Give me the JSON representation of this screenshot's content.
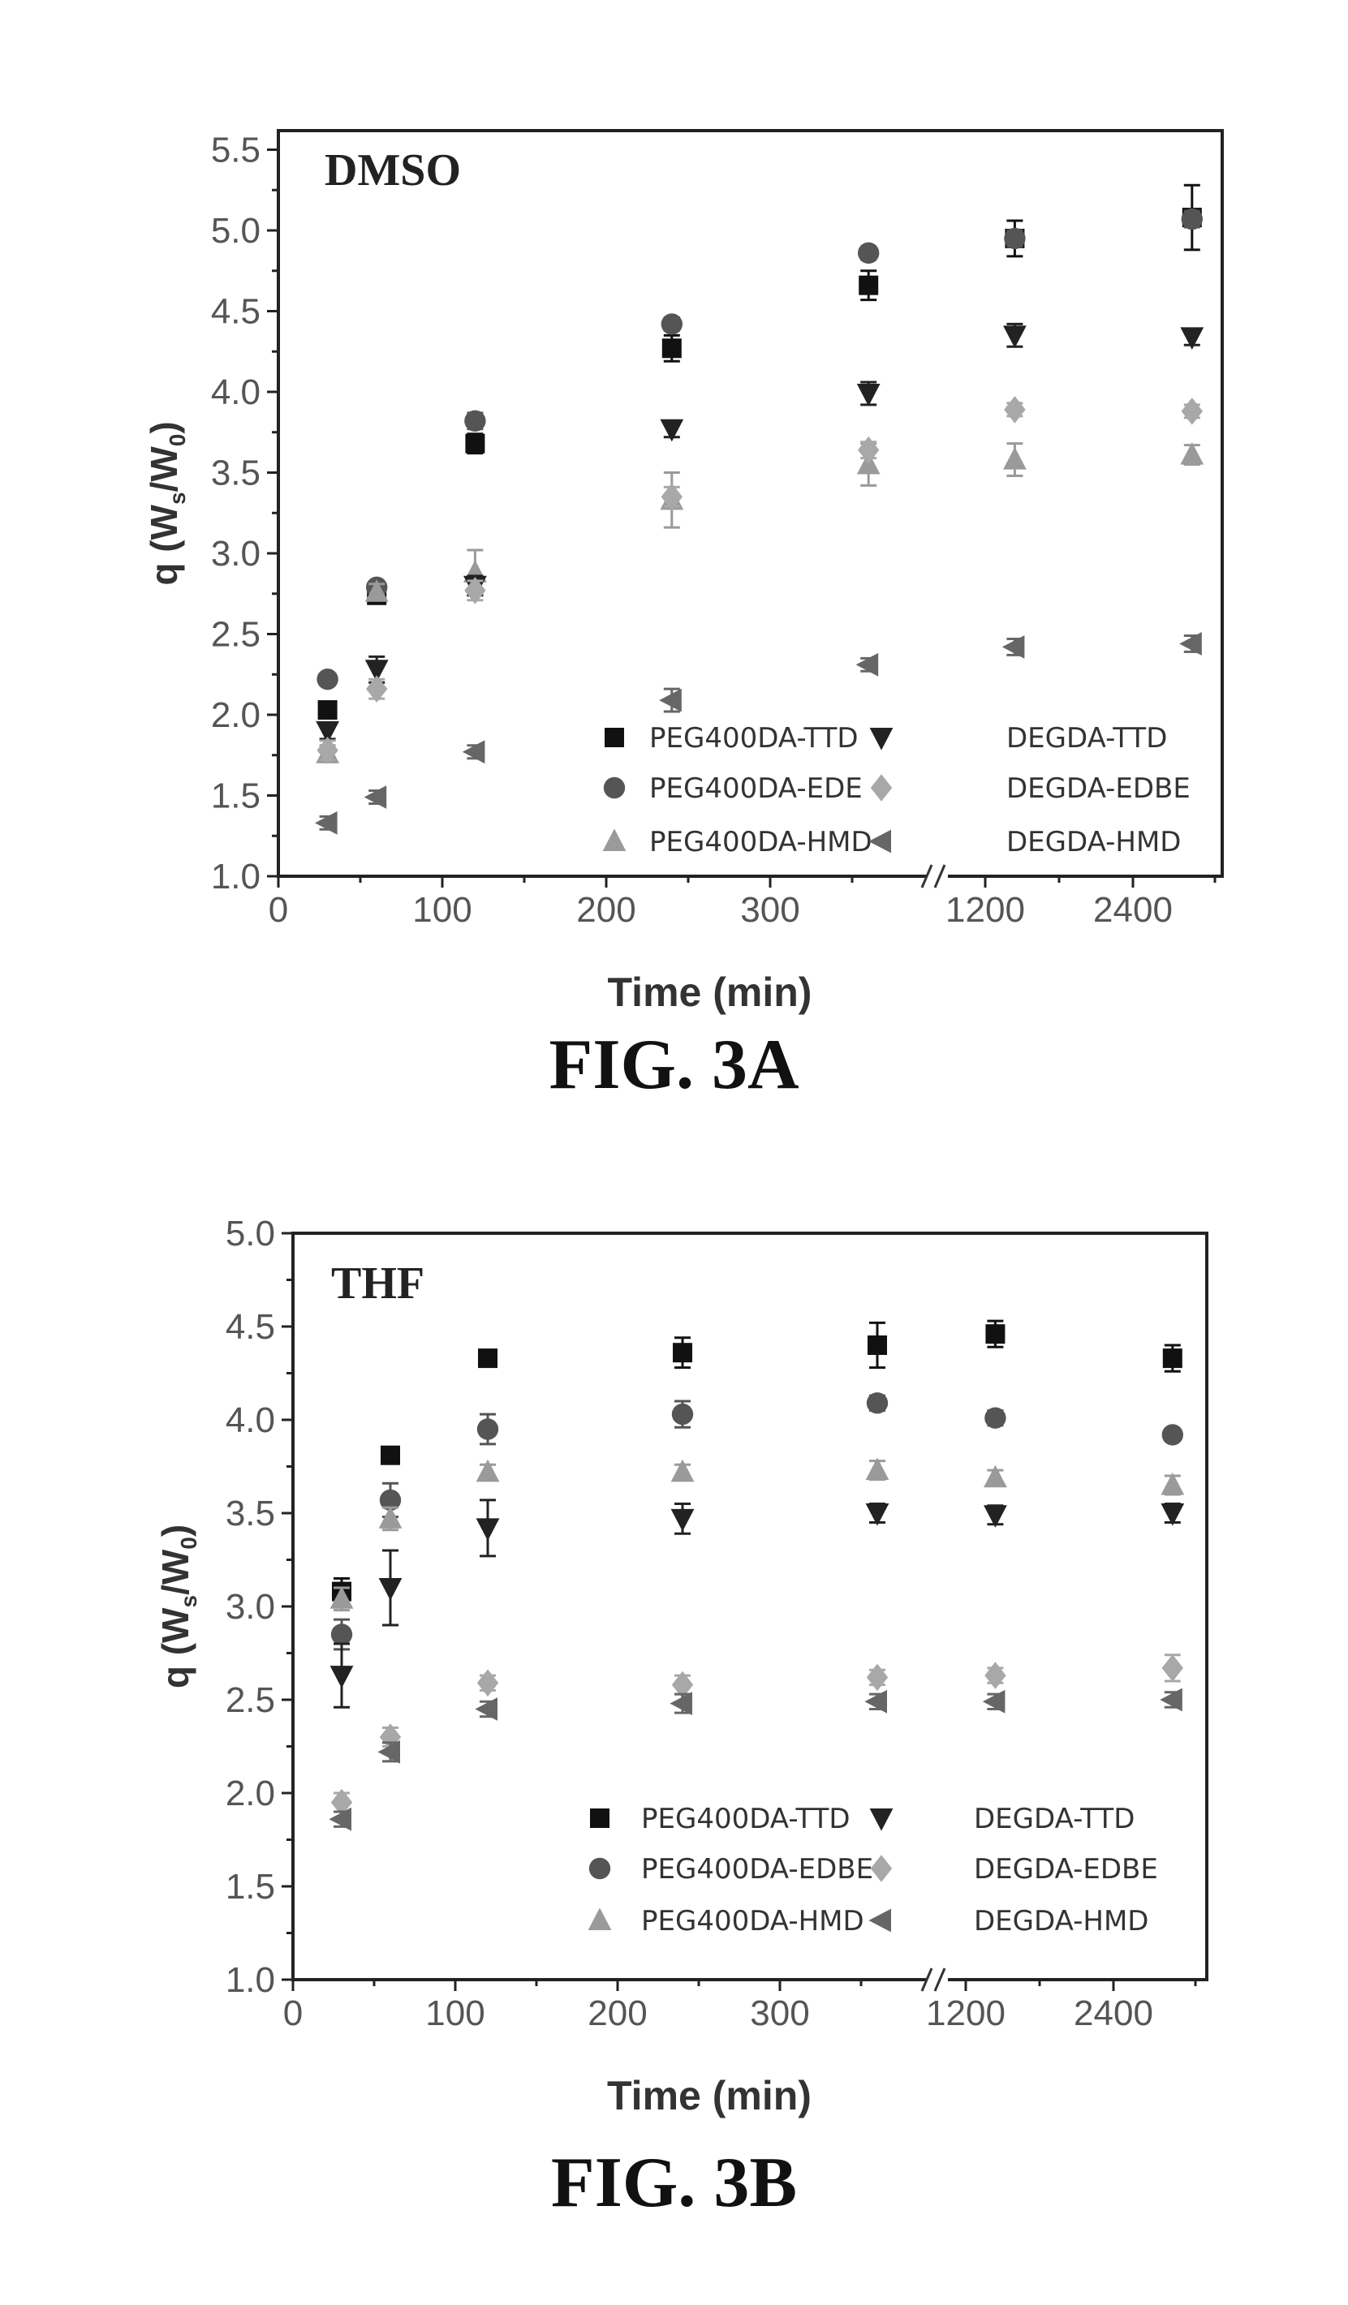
{
  "chart_data": [
    {
      "type": "scatter",
      "panel_label": "DMSO",
      "title": "",
      "xlabel": "Time (min)",
      "ylabel": "q (Ws/W0)",
      "ylabel_main": "q (W",
      "ylabel_sub1": "s",
      "ylabel_mid": "/W",
      "ylabel_sub2": "0",
      "ylabel_end": ")",
      "ylim": [
        1.0,
        5.5
      ],
      "yticks": [
        "1.0",
        "1.5",
        "2.0",
        "2.5",
        "3.0",
        "3.5",
        "4.0",
        "4.5",
        "5.0",
        "5.5"
      ],
      "xticks": [
        "0",
        "100",
        "200",
        "300",
        "1200",
        "2400"
      ],
      "x_axis_break": "between 300 and 1200",
      "x": [
        30,
        60,
        120,
        240,
        360,
        1440,
        2880
      ],
      "legend_placement": "bottom-right",
      "series": [
        {
          "name": "PEG400DA-TTD",
          "marker": "square",
          "color": "#111111",
          "values": [
            2.03,
            2.74,
            3.68,
            4.27,
            4.66,
            4.95,
            5.08
          ],
          "errors": [
            0.03,
            0.04,
            0.06,
            0.08,
            0.09,
            0.11,
            0.2
          ]
        },
        {
          "name": "PEG400DA-EDE",
          "marker": "circle",
          "color": "#555555",
          "values": [
            2.22,
            2.79,
            3.82,
            4.42,
            4.86,
            4.95,
            5.07
          ],
          "errors": [
            0.03,
            0.03,
            0.05,
            0.04,
            0.04,
            0.05,
            0.05
          ]
        },
        {
          "name": "PEG400DA-HMD",
          "marker": "triangle-up",
          "color": "#9a9a9a",
          "values": [
            1.76,
            2.76,
            2.88,
            3.33,
            3.55,
            3.58,
            3.61
          ],
          "errors": [
            0.05,
            0.05,
            0.14,
            0.17,
            0.13,
            0.1,
            0.06
          ]
        },
        {
          "name": "DEGDA-TTD",
          "marker": "triangle-down",
          "color": "#222222",
          "values": [
            1.9,
            2.28,
            2.8,
            3.77,
            3.99,
            4.35,
            4.34
          ],
          "errors": [
            0.05,
            0.08,
            0.06,
            0.05,
            0.07,
            0.07,
            0.05
          ]
        },
        {
          "name": "DEGDA-EDBE",
          "marker": "diamond",
          "color": "#a8a8a8",
          "values": [
            1.78,
            2.16,
            2.77,
            3.35,
            3.64,
            3.89,
            3.88
          ],
          "errors": [
            0.06,
            0.06,
            0.06,
            0.06,
            0.05,
            0.04,
            0.04
          ]
        },
        {
          "name": "DEGDA-HMD",
          "marker": "triangle-left",
          "color": "#666666",
          "values": [
            1.33,
            1.49,
            1.77,
            2.09,
            2.31,
            2.42,
            2.44
          ],
          "errors": [
            0.04,
            0.04,
            0.04,
            0.07,
            0.04,
            0.05,
            0.05
          ]
        }
      ]
    },
    {
      "type": "scatter",
      "panel_label": "THF",
      "title": "",
      "xlabel": "Time (min)",
      "ylabel": "q (Ws/W0)",
      "ylabel_main": "q (W",
      "ylabel_sub1": "s",
      "ylabel_mid": "/W",
      "ylabel_sub2": "0",
      "ylabel_end": ")",
      "ylim": [
        1.0,
        5.0
      ],
      "yticks": [
        "1.0",
        "1.5",
        "2.0",
        "2.5",
        "3.0",
        "3.5",
        "4.0",
        "4.5",
        "5.0"
      ],
      "xticks": [
        "0",
        "100",
        "200",
        "300",
        "1200",
        "2400"
      ],
      "x_axis_break": "between 300 and 1200",
      "x": [
        30,
        60,
        120,
        240,
        360,
        1440,
        2880
      ],
      "legend_placement": "bottom-right",
      "series": [
        {
          "name": "PEG400DA-TTD",
          "marker": "square",
          "color": "#111111",
          "values": [
            3.08,
            3.81,
            4.33,
            4.36,
            4.4,
            4.46,
            4.33
          ],
          "errors": [
            0.07,
            0.03,
            0.03,
            0.08,
            0.12,
            0.07,
            0.07
          ]
        },
        {
          "name": "PEG400DA-EDBE",
          "marker": "circle",
          "color": "#555555",
          "values": [
            2.85,
            3.57,
            3.95,
            4.03,
            4.09,
            4.01,
            3.92
          ],
          "errors": [
            0.08,
            0.09,
            0.08,
            0.07,
            0.04,
            0.04,
            0.03
          ]
        },
        {
          "name": "PEG400DA-HMD",
          "marker": "triangle-up",
          "color": "#9a9a9a",
          "values": [
            3.04,
            3.47,
            3.72,
            3.72,
            3.73,
            3.69,
            3.65
          ],
          "errors": [
            0.06,
            0.06,
            0.04,
            0.04,
            0.05,
            0.04,
            0.05
          ]
        },
        {
          "name": "DEGDA-TTD",
          "marker": "triangle-down",
          "color": "#222222",
          "values": [
            2.63,
            3.1,
            3.42,
            3.47,
            3.5,
            3.49,
            3.5
          ],
          "errors": [
            0.17,
            0.2,
            0.15,
            0.08,
            0.05,
            0.05,
            0.05
          ]
        },
        {
          "name": "DEGDA-EDBE",
          "marker": "diamond",
          "color": "#a8a8a8",
          "values": [
            1.95,
            2.3,
            2.59,
            2.58,
            2.62,
            2.63,
            2.67
          ],
          "errors": [
            0.05,
            0.05,
            0.04,
            0.05,
            0.04,
            0.04,
            0.07
          ]
        },
        {
          "name": "DEGDA-HMD",
          "marker": "triangle-left",
          "color": "#666666",
          "values": [
            1.86,
            2.22,
            2.45,
            2.48,
            2.49,
            2.49,
            2.5
          ],
          "errors": [
            0.04,
            0.05,
            0.04,
            0.05,
            0.04,
            0.04,
            0.04
          ]
        }
      ]
    }
  ],
  "figures": {
    "fig_a_caption": "FIG. 3A",
    "fig_b_caption": "FIG. 3B"
  }
}
